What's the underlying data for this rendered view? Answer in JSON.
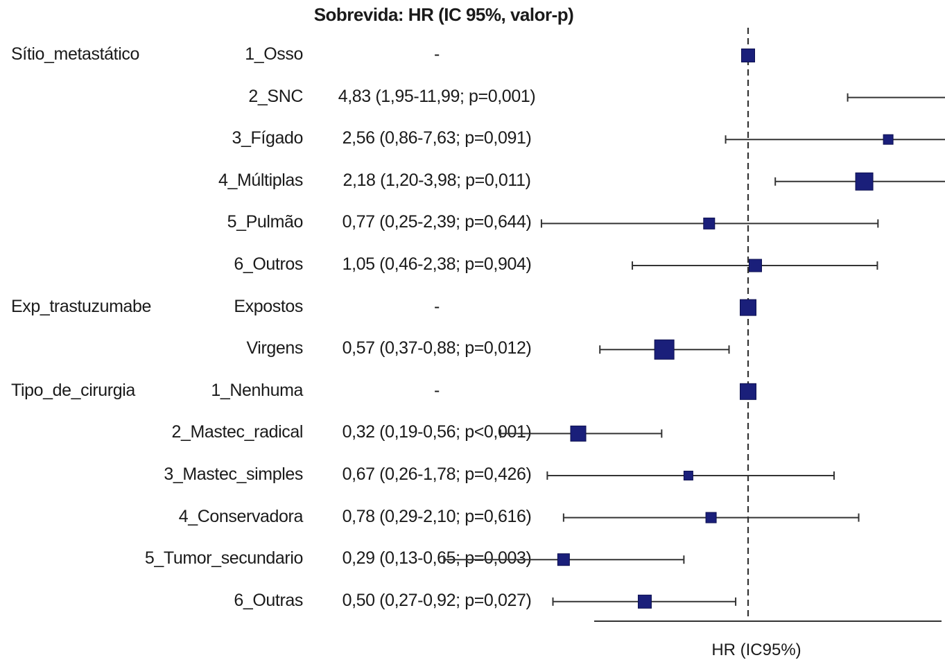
{
  "chart_data": {
    "type": "forest",
    "title": "Sobrevida: HR (IC 95%, valor-p)",
    "xlabel": "HR (IC95%)",
    "x_scale": "log",
    "reference_line": 1,
    "xticks": [
      5,
      10,
      15
    ],
    "rows": [
      {
        "variable": "Sítio_metastático",
        "level": "1_Osso",
        "estimate_text": "-",
        "hr": 1,
        "lo": null,
        "hi": null,
        "reference": true,
        "weight": 0.55
      },
      {
        "variable": "",
        "level": "2_SNC",
        "estimate_text": "4,83 (1,95-11,99; p=0,001)",
        "hr": 4.83,
        "lo": 1.95,
        "hi": 11.99,
        "weight": 0.45
      },
      {
        "variable": "",
        "level": "3_Fígado",
        "estimate_text": "2,56 (0,86-7,63; p=0,091)",
        "hr": 2.56,
        "lo": 0.86,
        "hi": 7.63,
        "weight": 0.3
      },
      {
        "variable": "",
        "level": "4_Múltiplas",
        "estimate_text": "2,18 (1,20-3,98; p=0,011)",
        "hr": 2.18,
        "lo": 1.2,
        "hi": 3.98,
        "weight": 0.85
      },
      {
        "variable": "",
        "level": "5_Pulmão",
        "estimate_text": "0,77 (0,25-2,39; p=0,644)",
        "hr": 0.77,
        "lo": 0.25,
        "hi": 2.39,
        "weight": 0.4
      },
      {
        "variable": "",
        "level": "6_Outros",
        "estimate_text": "1,05 (0,46-2,38; p=0,904)",
        "hr": 1.05,
        "lo": 0.46,
        "hi": 2.38,
        "weight": 0.5
      },
      {
        "variable": "Exp_trastuzumabe",
        "level": "Expostos",
        "estimate_text": "-",
        "hr": 1,
        "lo": null,
        "hi": null,
        "reference": true,
        "weight": 0.75
      },
      {
        "variable": "",
        "level": "Virgens",
        "estimate_text": "0,57 (0,37-0,88; p=0,012)",
        "hr": 0.57,
        "lo": 0.37,
        "hi": 0.88,
        "weight": 1.0
      },
      {
        "variable": "Tipo_de_cirurgia",
        "level": "1_Nenhuma",
        "estimate_text": "-",
        "hr": 1,
        "lo": null,
        "hi": null,
        "reference": true,
        "weight": 0.75
      },
      {
        "variable": "",
        "level": "2_Mastec_radical",
        "estimate_text": "0,32 (0,19-0,56; p<0,001)",
        "hr": 0.32,
        "lo": 0.19,
        "hi": 0.56,
        "weight": 0.7
      },
      {
        "variable": "",
        "level": "3_Mastec_simples",
        "estimate_text": "0,67 (0,26-1,78; p=0,426)",
        "hr": 0.67,
        "lo": 0.26,
        "hi": 1.78,
        "weight": 0.25
      },
      {
        "variable": "",
        "level": "4_Conservadora",
        "estimate_text": "0,78 (0,29-2,10; p=0,616)",
        "hr": 0.78,
        "lo": 0.29,
        "hi": 2.1,
        "weight": 0.35
      },
      {
        "variable": "",
        "level": "5_Tumor_secundario",
        "estimate_text": "0,29 (0,13-0,65; p=0,003)",
        "hr": 0.29,
        "lo": 0.13,
        "hi": 0.65,
        "weight": 0.45
      },
      {
        "variable": "",
        "level": "6_Outras",
        "estimate_text": "0,50 (0,27-0,92; p=0,027)",
        "hr": 0.5,
        "lo": 0.27,
        "hi": 0.92,
        "weight": 0.55
      }
    ],
    "colors": {
      "marker": "#1a1f7a",
      "marker_edge": "#0d1050",
      "line": "#333333",
      "axis": "#333333",
      "tick_label": "#777777"
    }
  }
}
